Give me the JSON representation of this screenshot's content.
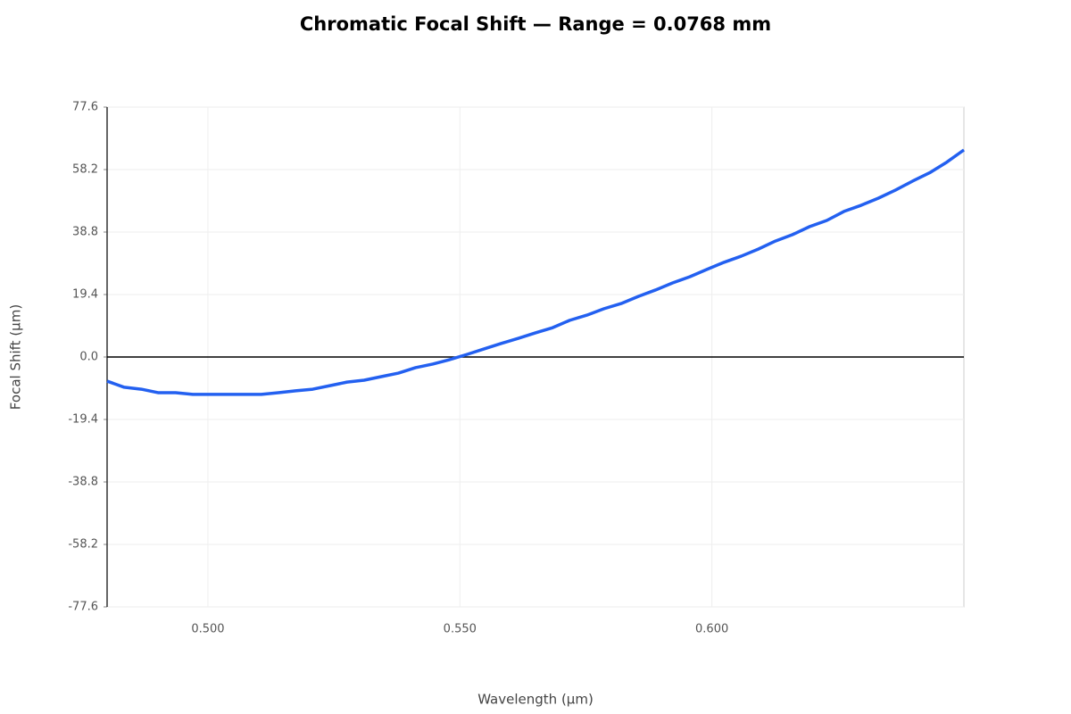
{
  "chart_data": {
    "type": "line",
    "title": "Chromatic Focal Shift — Range = 0.0768 mm",
    "x_label": "Wavelength (µm)",
    "y_label": "Focal Shift (µm)",
    "x": [
      0.48,
      0.4834,
      0.4868,
      0.4902,
      0.4936,
      0.497,
      0.5004,
      0.5038,
      0.5072,
      0.5106,
      0.514,
      0.5174,
      0.5208,
      0.5242,
      0.5276,
      0.531,
      0.5344,
      0.5378,
      0.5412,
      0.5446,
      0.548,
      0.5514,
      0.5548,
      0.5582,
      0.5616,
      0.565,
      0.5684,
      0.5718,
      0.5752,
      0.5786,
      0.582,
      0.5854,
      0.5888,
      0.5922,
      0.5956,
      0.599,
      0.6024,
      0.6058,
      0.6092,
      0.6126,
      0.616,
      0.6194,
      0.6228,
      0.6262,
      0.6296,
      0.633,
      0.6364,
      0.6398,
      0.6432,
      0.6466,
      0.65
    ],
    "series": [
      {
        "color": "#2360f0",
        "values": [
          -7.5,
          -9.4,
          -10.0,
          -11.1,
          -11.1,
          -11.6,
          -11.6,
          -11.6,
          -11.6,
          -11.6,
          -11.1,
          -10.5,
          -10.0,
          -8.9,
          -7.8,
          -7.2,
          -6.1,
          -5.0,
          -3.3,
          -2.2,
          -0.8,
          0.8,
          2.5,
          4.2,
          5.8,
          7.5,
          9.1,
          11.4,
          13.0,
          15.0,
          16.6,
          18.8,
          20.8,
          23.0,
          24.9,
          27.2,
          29.4,
          31.3,
          33.5,
          36.0,
          38.0,
          40.5,
          42.4,
          45.2,
          47.1,
          49.3,
          51.8,
          54.6,
          57.2,
          60.5,
          64.3
        ]
      }
    ],
    "xlim": [
      0.48,
      0.65
    ],
    "ylim": [
      -77.6,
      77.6
    ],
    "xticks": [
      {
        "value": 0.5,
        "label": "0.500"
      },
      {
        "value": 0.55,
        "label": "0.550"
      },
      {
        "value": 0.6,
        "label": "0.600"
      }
    ],
    "yticks": [
      -77.6,
      -58.2,
      -38.8,
      -19.4,
      {
        "value": 0,
        "label": "0.0"
      },
      19.4,
      38.8,
      58.2,
      77.6
    ],
    "grid": true
  }
}
